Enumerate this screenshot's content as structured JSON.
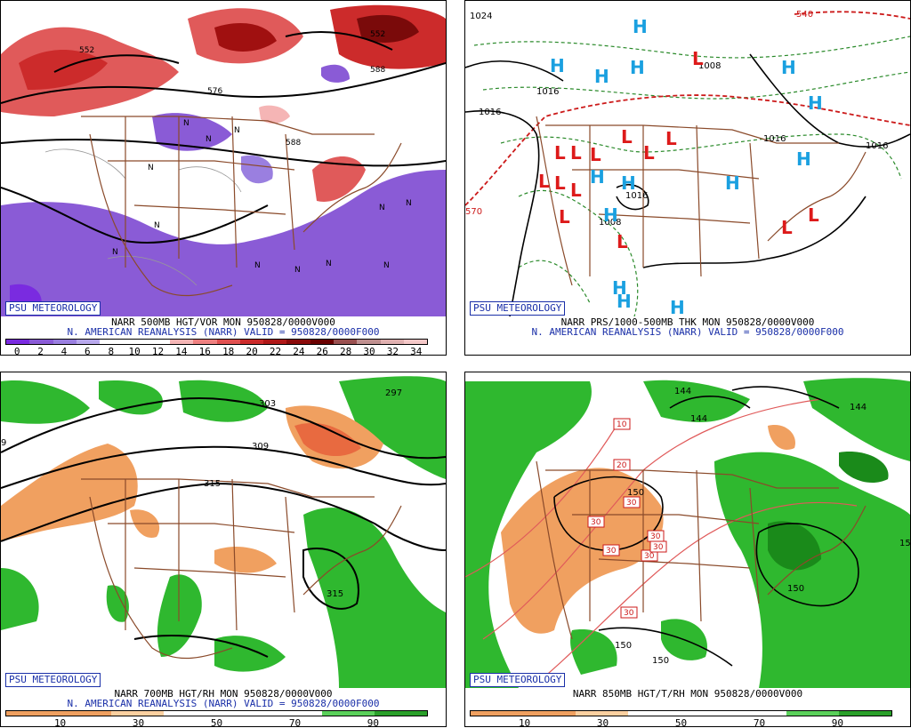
{
  "badge": "PSU METEOROLOGY",
  "panels": [
    {
      "title": "NARR 500MB HGT/VOR MON 950828/0000V000",
      "subtitle": "N. AMERICAN REANALYSIS (NARR) VALID = 950828/0000F000",
      "colorbar": [
        "#7a2be0",
        "#8a5bd6",
        "#9a7fe0",
        "#b8a8ec",
        "#ffffff",
        "#ffffff",
        "#ffffff",
        "#f5b5b5",
        "#ee8080",
        "#e05050",
        "#cc2b2b",
        "#b01818",
        "#8a0a0a",
        "#6a0000",
        "#9a5050",
        "#c09090",
        "#e0b0b0",
        "#f5c8c8"
      ],
      "ticks": [
        "0",
        "2",
        "4",
        "6",
        "8",
        "10",
        "12",
        "14",
        "16",
        "18",
        "20",
        "22",
        "24",
        "26",
        "28",
        "30",
        "32",
        "34"
      ],
      "contours": [
        "552",
        "576",
        "588",
        "588",
        "552"
      ]
    },
    {
      "title": "NARR PRS/1000-500MB THK MON 950828/0000V000",
      "subtitle": "N. AMERICAN REANALYSIS (NARR) VALID = 950828/0000F000",
      "isobars": [
        "1024",
        "1016",
        "1016",
        "1016",
        "1008",
        "1016",
        "1008",
        "1016",
        "570",
        "540"
      ]
    },
    {
      "title": "NARR 700MB HGT/RH MON 950828/0000V000",
      "subtitle": "N. AMERICAN REANALYSIS (NARR) VALID = 950828/0000F000",
      "colorbar": [
        "#f0a060",
        "#f0a060",
        "#fbd0a0",
        "#ffffff",
        "#ffffff",
        "#ffffff",
        "#5ad05a",
        "#2aa02a"
      ],
      "ticks": [
        "10",
        "30",
        "50",
        "70",
        "90"
      ],
      "contours": [
        "303",
        "309",
        "315",
        "315",
        "297",
        "9"
      ]
    },
    {
      "title": "NARR 850MB HGT/T/RH MON 950828/0000V000",
      "colorbar": [
        "#f0a060",
        "#f0a060",
        "#fbd0a0",
        "#ffffff",
        "#ffffff",
        "#ffffff",
        "#5ad05a",
        "#2aa02a"
      ],
      "ticks": [
        "10",
        "30",
        "50",
        "70",
        "90"
      ],
      "contours": [
        "144",
        "144",
        "144",
        "150",
        "150",
        "150",
        "150",
        "15"
      ],
      "temps": [
        "10",
        "20",
        "30",
        "30",
        "30",
        "30",
        "30",
        "30",
        "30"
      ]
    }
  ]
}
